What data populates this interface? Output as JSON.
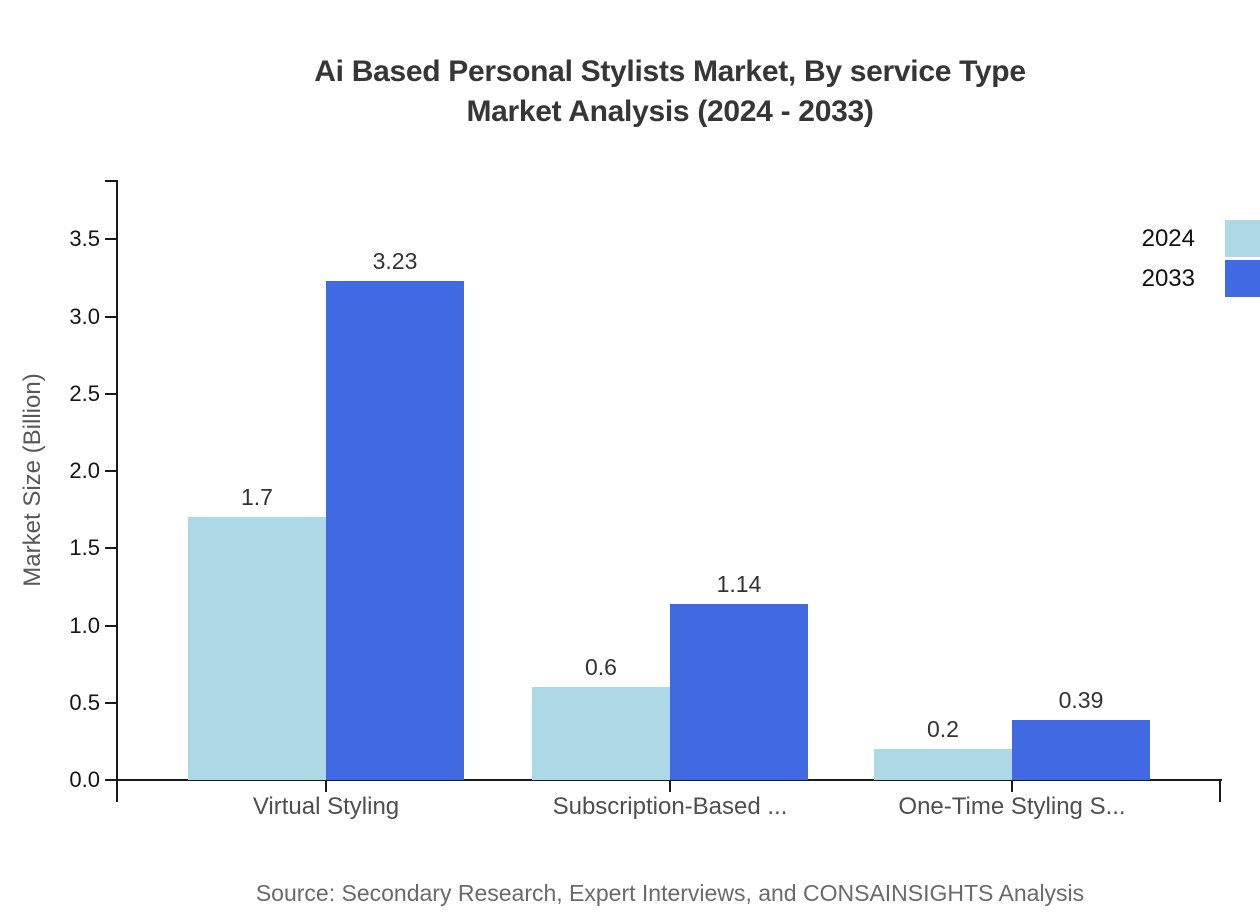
{
  "title": {
    "line1": "Ai Based Personal Stylists Market, By service Type",
    "line2": "Market Analysis (2024 - 2033)"
  },
  "chart_data": {
    "type": "bar",
    "categories": [
      "Virtual Styling",
      "Subscription-Based ...",
      "One-Time Styling S..."
    ],
    "series": [
      {
        "name": "2024",
        "color": "#add8e6",
        "values": [
          1.7,
          0.6,
          0.2
        ]
      },
      {
        "name": "2033",
        "color": "#4169e1",
        "values": [
          3.23,
          1.14,
          0.39
        ]
      }
    ],
    "ylabel": "Market Size (Billion)",
    "yticks": [
      "0.0",
      "0.5",
      "1.0",
      "1.5",
      "2.0",
      "2.5",
      "3.0",
      "3.5"
    ],
    "ylim": [
      0,
      3.9
    ],
    "grid": false,
    "legend_position": "top-right",
    "value_labels_shown": true
  },
  "source": "Source: Secondary Research, Expert Interviews, and CONSAINSIGHTS Analysis",
  "colors": {
    "series_2024": "#add8e6",
    "series_2033": "#4169e1",
    "axis": "#1a1a1a",
    "title_text": "#363636",
    "muted_text": "#6a6a6a"
  }
}
